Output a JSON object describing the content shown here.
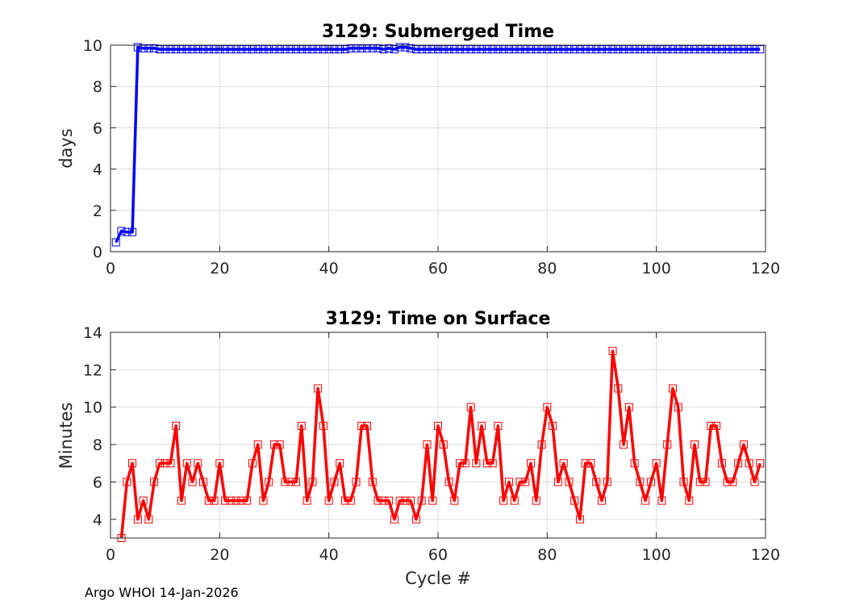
{
  "footer": "Argo WHOI 14-Jan-2026",
  "chart_data": [
    {
      "type": "line",
      "title": "3129: Submerged Time",
      "xlabel": "",
      "ylabel": "days",
      "xlim": [
        0,
        120
      ],
      "ylim": [
        0,
        10
      ],
      "xticks": [
        0,
        20,
        40,
        60,
        80,
        100,
        120
      ],
      "yticks": [
        0,
        2,
        4,
        6,
        8,
        10
      ],
      "grid": true,
      "marker": "square",
      "color": "#0000ff",
      "series": [
        {
          "name": "Submerged Time",
          "x": [
            1,
            2,
            3,
            4,
            5,
            6,
            7,
            8,
            9,
            10,
            11,
            12,
            13,
            14,
            15,
            16,
            17,
            18,
            19,
            20,
            21,
            22,
            23,
            24,
            25,
            26,
            27,
            28,
            29,
            30,
            31,
            32,
            33,
            34,
            35,
            36,
            37,
            38,
            39,
            40,
            41,
            42,
            43,
            44,
            45,
            46,
            47,
            48,
            49,
            50,
            51,
            52,
            53,
            54,
            55,
            56,
            57,
            58,
            59,
            60,
            61,
            62,
            63,
            64,
            65,
            66,
            67,
            68,
            69,
            70,
            71,
            72,
            73,
            74,
            75,
            76,
            77,
            78,
            79,
            80,
            81,
            82,
            83,
            84,
            85,
            86,
            87,
            88,
            89,
            90,
            91,
            92,
            93,
            94,
            95,
            96,
            97,
            98,
            99,
            100,
            101,
            102,
            103,
            104,
            105,
            106,
            107,
            108,
            109,
            110,
            111,
            112,
            113,
            114,
            115,
            116,
            117,
            118,
            119
          ],
          "values": [
            0.45,
            1.0,
            0.95,
            0.95,
            9.9,
            9.85,
            9.85,
            9.85,
            9.8,
            9.8,
            9.8,
            9.8,
            9.8,
            9.8,
            9.8,
            9.8,
            9.8,
            9.8,
            9.8,
            9.8,
            9.8,
            9.8,
            9.8,
            9.8,
            9.8,
            9.8,
            9.8,
            9.8,
            9.8,
            9.8,
            9.8,
            9.8,
            9.8,
            9.8,
            9.8,
            9.8,
            9.8,
            9.8,
            9.8,
            9.8,
            9.8,
            9.8,
            9.8,
            9.85,
            9.85,
            9.85,
            9.85,
            9.85,
            9.85,
            9.8,
            9.85,
            9.8,
            9.9,
            9.9,
            9.85,
            9.8,
            9.8,
            9.8,
            9.8,
            9.8,
            9.8,
            9.8,
            9.8,
            9.8,
            9.8,
            9.8,
            9.8,
            9.8,
            9.8,
            9.8,
            9.8,
            9.8,
            9.8,
            9.8,
            9.8,
            9.8,
            9.8,
            9.8,
            9.8,
            9.8,
            9.8,
            9.8,
            9.8,
            9.8,
            9.8,
            9.8,
            9.8,
            9.8,
            9.8,
            9.8,
            9.8,
            9.8,
            9.8,
            9.8,
            9.8,
            9.8,
            9.8,
            9.8,
            9.8,
            9.8,
            9.8,
            9.8,
            9.8,
            9.8,
            9.8,
            9.8,
            9.8,
            9.8,
            9.8,
            9.8,
            9.8,
            9.8,
            9.8,
            9.8,
            9.8,
            9.8,
            9.8,
            9.8,
            9.8
          ]
        }
      ]
    },
    {
      "type": "line",
      "title": "3129: Time on Surface",
      "xlabel": "Cycle #",
      "ylabel": "Minutes",
      "xlim": [
        0,
        120
      ],
      "ylim": [
        3,
        14
      ],
      "xticks": [
        0,
        20,
        40,
        60,
        80,
        100,
        120
      ],
      "yticks": [
        4,
        6,
        8,
        10,
        12,
        14
      ],
      "grid": true,
      "marker": "square",
      "color": "#ff0000",
      "series": [
        {
          "name": "Time on Surface",
          "x": [
            2,
            3,
            4,
            5,
            6,
            7,
            8,
            9,
            10,
            11,
            12,
            13,
            14,
            15,
            16,
            17,
            18,
            19,
            20,
            21,
            22,
            23,
            24,
            25,
            26,
            27,
            28,
            29,
            30,
            31,
            32,
            33,
            34,
            35,
            36,
            37,
            38,
            39,
            40,
            41,
            42,
            43,
            44,
            45,
            46,
            47,
            48,
            49,
            50,
            51,
            52,
            53,
            54,
            55,
            56,
            57,
            58,
            59,
            60,
            61,
            62,
            63,
            64,
            65,
            66,
            67,
            68,
            69,
            70,
            71,
            72,
            73,
            74,
            75,
            76,
            77,
            78,
            79,
            80,
            81,
            82,
            83,
            84,
            85,
            86,
            87,
            88,
            89,
            90,
            91,
            92,
            93,
            94,
            95,
            96,
            97,
            98,
            99,
            100,
            101,
            102,
            103,
            104,
            105,
            106,
            107,
            108,
            109,
            110,
            111,
            112,
            113,
            114,
            115,
            116,
            117,
            118,
            119
          ],
          "values": [
            3,
            6,
            7,
            4,
            5,
            4,
            6,
            7,
            7,
            7,
            9,
            5,
            7,
            6,
            7,
            6,
            5,
            5,
            7,
            5,
            5,
            5,
            5,
            5,
            7,
            8,
            5,
            6,
            8,
            8,
            6,
            6,
            6,
            9,
            5,
            6,
            11,
            9,
            5,
            6,
            7,
            5,
            5,
            6,
            9,
            9,
            6,
            5,
            5,
            5,
            4,
            5,
            5,
            5,
            4,
            5,
            8,
            5,
            9,
            8,
            6,
            5,
            7,
            7,
            10,
            7,
            9,
            7,
            7,
            9,
            5,
            6,
            5,
            6,
            6,
            7,
            5,
            8,
            10,
            9,
            6,
            7,
            6,
            5,
            4,
            7,
            7,
            6,
            5,
            6,
            13,
            11,
            8,
            10,
            7,
            6,
            5,
            6,
            7,
            5,
            8,
            11,
            10,
            6,
            5,
            8,
            6,
            6,
            9,
            9,
            7,
            6,
            6,
            7,
            8,
            7,
            6,
            7
          ]
        }
      ]
    }
  ]
}
